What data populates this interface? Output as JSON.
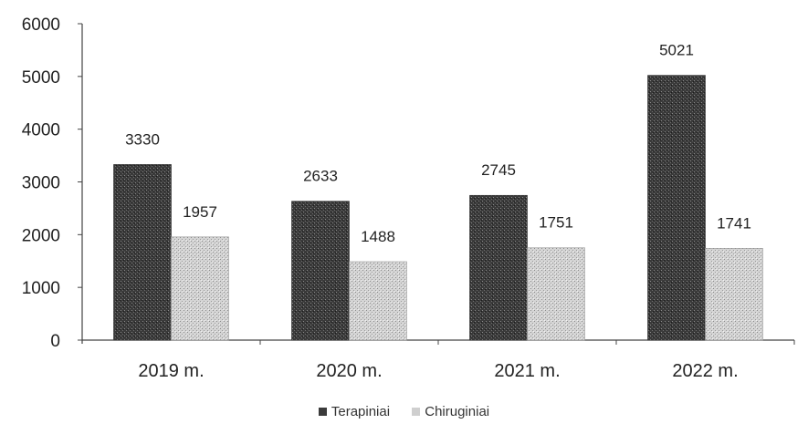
{
  "chart_data": {
    "type": "bar",
    "title": "",
    "xlabel": "",
    "ylabel": "",
    "categories": [
      "2019 m.",
      "2020 m.",
      "2021 m.",
      "2022 m."
    ],
    "ylim": [
      0,
      6000
    ],
    "yticks": [
      0,
      1000,
      2000,
      3000,
      4000,
      5000,
      6000
    ],
    "grid": false,
    "legend_position": "bottom",
    "series": [
      {
        "name": "Terapiniai",
        "values": [
          3330,
          2633,
          2745,
          5021
        ],
        "color": "#3b3b3b"
      },
      {
        "name": "Chiruginiai",
        "values": [
          1957,
          1488,
          1751,
          1741
        ],
        "color": "#cfcfcf"
      }
    ]
  }
}
